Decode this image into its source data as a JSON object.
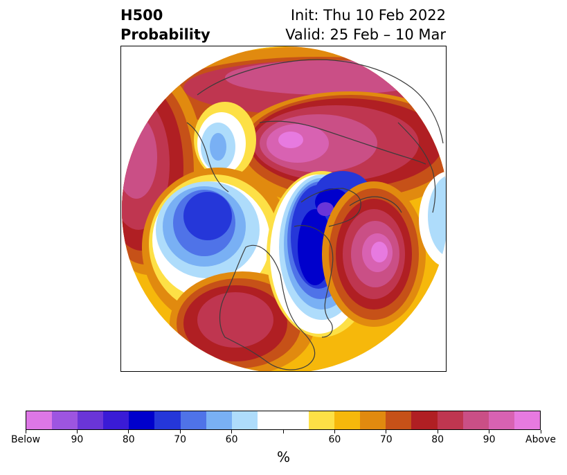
{
  "header": {
    "title_line1": "H500",
    "title_line2": "Probability",
    "init": "Init: Thu 10 Feb 2022",
    "valid": "Valid: 25 Feb – 10 Mar"
  },
  "colorbar": {
    "colors": [
      "#dd77e6",
      "#9d55e0",
      "#6a35d8",
      "#3a1bd6",
      "#0000cc",
      "#2537d9",
      "#4f73e8",
      "#79b0f4",
      "#aedcfb",
      "#ffffff",
      "#ffffff",
      "#fde046",
      "#f6b80b",
      "#e18a0f",
      "#c65118",
      "#b01f23",
      "#bf3650",
      "#ca4f86",
      "#d862b2",
      "#e77ae0"
    ],
    "tick_labels": [
      "Below",
      "90",
      "80",
      "70",
      "60",
      "",
      "60",
      "70",
      "80",
      "90",
      "Above"
    ],
    "unit_label": "%"
  },
  "map": {
    "colors": {
      "above_max": "#e77ae0",
      "above_90": "#d862b2",
      "above_85": "#ca4f86",
      "above_80": "#bf3650",
      "above_75": "#b01f23",
      "above_70": "#c65118",
      "above_65": "#e18a0f",
      "above_60": "#f6b80b",
      "above_55": "#fde046",
      "below_55": "#aedcfb",
      "below_60": "#79b0f4",
      "below_65": "#4f73e8",
      "below_70": "#2537d9",
      "below_75": "#0000cc",
      "below_80": "#6a35d8",
      "coast": "#3c3c3c"
    }
  }
}
